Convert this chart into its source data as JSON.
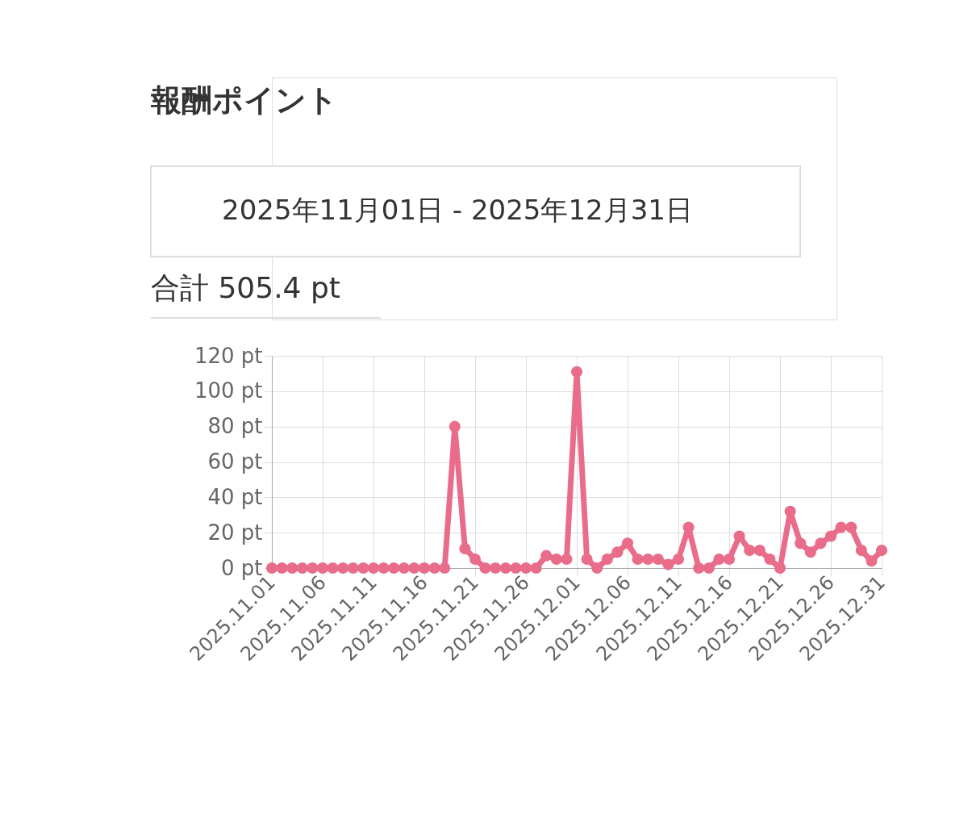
{
  "chart_data": {
    "type": "line",
    "title": "報酬ポイント",
    "subtitle": "2025年11月01日 - 2025年12月31日",
    "annotations": [
      "合計 505.4 pt"
    ],
    "x": [
      "2025-11-01",
      "2025-11-02",
      "2025-11-03",
      "2025-11-04",
      "2025-11-05",
      "2025-11-06",
      "2025-11-07",
      "2025-11-08",
      "2025-11-09",
      "2025-11-10",
      "2025-11-11",
      "2025-11-12",
      "2025-11-13",
      "2025-11-14",
      "2025-11-15",
      "2025-11-16",
      "2025-11-17",
      "2025-11-18",
      "2025-11-19",
      "2025-11-20",
      "2025-11-21",
      "2025-11-22",
      "2025-11-23",
      "2025-11-24",
      "2025-11-25",
      "2025-11-26",
      "2025-11-27",
      "2025-11-28",
      "2025-11-29",
      "2025-11-30",
      "2025-12-01",
      "2025-12-02",
      "2025-12-03",
      "2025-12-04",
      "2025-12-05",
      "2025-12-06",
      "2025-12-07",
      "2025-12-08",
      "2025-12-09",
      "2025-12-10",
      "2025-12-11",
      "2025-12-12",
      "2025-12-13",
      "2025-12-14",
      "2025-12-15",
      "2025-12-16",
      "2025-12-17",
      "2025-12-18",
      "2025-12-19",
      "2025-12-20",
      "2025-12-21",
      "2025-12-22",
      "2025-12-23",
      "2025-12-24",
      "2025-12-25",
      "2025-12-26",
      "2025-12-27",
      "2025-12-28",
      "2025-12-29",
      "2025-12-30",
      "2025-12-31"
    ],
    "series": [
      {
        "color": "#e96d8a",
        "values": [
          0,
          0,
          0,
          0,
          0,
          0,
          0,
          0,
          0,
          0,
          0,
          0,
          0,
          0,
          0,
          0,
          0,
          0,
          80,
          11,
          5,
          0,
          0,
          0,
          0,
          0,
          0,
          7,
          5,
          5,
          111,
          5,
          0,
          5,
          9,
          14,
          5,
          5,
          5,
          2,
          5,
          23,
          0,
          0,
          5,
          5,
          18,
          10,
          10,
          5,
          0,
          32,
          14,
          9,
          14,
          18,
          23,
          23,
          10,
          4,
          10
        ]
      }
    ],
    "xlim": [
      "2025-11-01",
      "2025-12-31"
    ],
    "xticks": [
      {
        "value": "2025-11-01",
        "label": "2025.11.01"
      },
      {
        "value": "2025-11-06",
        "label": "2025.11.06"
      },
      {
        "value": "2025-11-11",
        "label": "2025.11.11"
      },
      {
        "value": "2025-11-16",
        "label": "2025.11.16"
      },
      {
        "value": "2025-11-21",
        "label": "2025.11.21"
      },
      {
        "value": "2025-11-26",
        "label": "2025.11.26"
      },
      {
        "value": "2025-12-01",
        "label": "2025.12.01"
      },
      {
        "value": "2025-12-06",
        "label": "2025.12.06"
      },
      {
        "value": "2025-12-11",
        "label": "2025.12.11"
      },
      {
        "value": "2025-12-16",
        "label": "2025.12.16"
      },
      {
        "value": "2025-12-21",
        "label": "2025.12.21"
      },
      {
        "value": "2025-12-26",
        "label": "2025.12.26"
      },
      {
        "value": "2025-12-31",
        "label": "2025.12.31"
      }
    ],
    "ylim": [
      0,
      120
    ],
    "yticks": [
      {
        "value": 0,
        "label": "0 pt"
      },
      {
        "value": 20,
        "label": "20 pt"
      },
      {
        "value": 40,
        "label": "40 pt"
      },
      {
        "value": 60,
        "label": "60 pt"
      },
      {
        "value": 80,
        "label": "80 pt"
      },
      {
        "value": 100,
        "label": "100 pt"
      },
      {
        "value": 120,
        "label": "120 pt"
      }
    ],
    "grid": true,
    "marker": "circle",
    "line_style": "solid"
  }
}
